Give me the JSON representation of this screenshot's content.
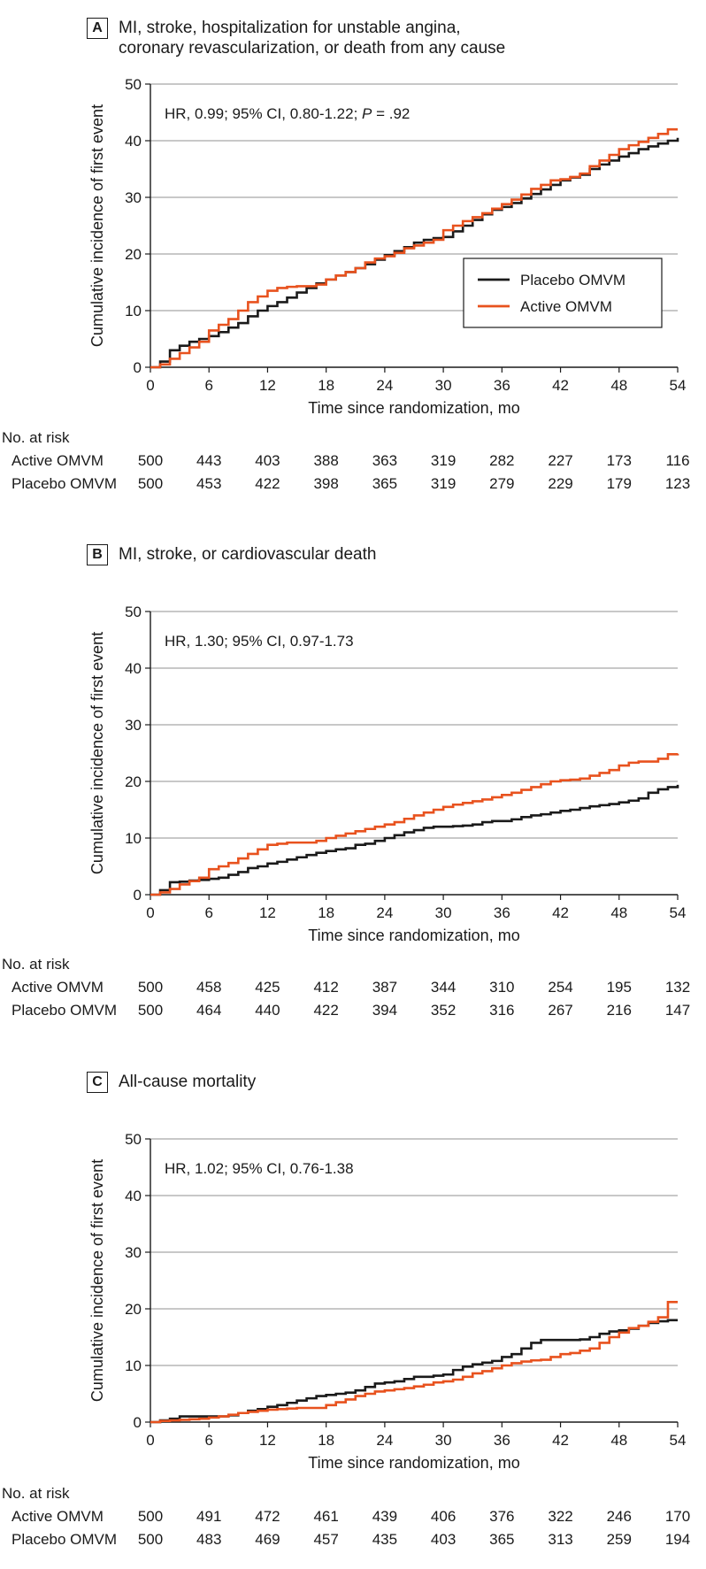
{
  "colors": {
    "placebo": "#1a1a1a",
    "active": "#e8521e",
    "grid": "#a6a6a6"
  },
  "x_axis_label": "Time since randomization, mo",
  "y_axis_label": "Cumulative incidence of first event",
  "legend": {
    "placebo": "Placebo OMVM",
    "active": "Active OMVM"
  },
  "risk_table_title": "No. at risk",
  "chart_data": [
    {
      "type": "line",
      "step": true,
      "panel": "A",
      "title": "MI, stroke, hospitalization for unstable angina,\ncoronary revascularization, or death from any cause",
      "annotation_parts": [
        "HR, 0.99; 95% CI, 0.80-1.22; ",
        "P",
        " = .92"
      ],
      "xlabel": "Time since randomization, mo",
      "ylabel": "Cumulative incidence of first event",
      "xlim": [
        0,
        54
      ],
      "ylim": [
        0,
        50
      ],
      "xticks": [
        0,
        6,
        12,
        18,
        24,
        30,
        36,
        42,
        48,
        54
      ],
      "yticks": [
        0,
        10,
        20,
        30,
        40,
        50
      ],
      "legend_position": "right, middle",
      "series": [
        {
          "name": "Placebo OMVM",
          "color": "#1a1a1a",
          "x": [
            0,
            1,
            2,
            3,
            4,
            5,
            6,
            7,
            8,
            9,
            10,
            11,
            12,
            13,
            14,
            15,
            16,
            17,
            18,
            19,
            20,
            21,
            22,
            23,
            24,
            25,
            26,
            27,
            28,
            29,
            30,
            31,
            32,
            33,
            34,
            35,
            36,
            37,
            38,
            39,
            40,
            41,
            42,
            43,
            44,
            45,
            46,
            47,
            48,
            49,
            50,
            51,
            52,
            53,
            54
          ],
          "y": [
            0,
            1.0,
            3.0,
            3.8,
            4.5,
            5.0,
            5.5,
            6.2,
            7.0,
            7.8,
            9.0,
            10.0,
            10.8,
            11.5,
            12.3,
            13.2,
            14.0,
            14.8,
            15.5,
            16.2,
            16.8,
            17.5,
            18.2,
            19.0,
            19.8,
            20.5,
            21.2,
            22.0,
            22.5,
            22.8,
            23.0,
            24.0,
            25.0,
            26.0,
            27.0,
            27.8,
            28.3,
            29.0,
            29.8,
            30.6,
            31.4,
            32.2,
            33.0,
            33.5,
            34.0,
            35.0,
            35.8,
            36.5,
            37.2,
            37.8,
            38.5,
            39.0,
            39.5,
            40.0,
            40.5
          ]
        },
        {
          "name": "Active OMVM",
          "color": "#e8521e",
          "x": [
            0,
            1,
            2,
            3,
            4,
            5,
            6,
            7,
            8,
            9,
            10,
            11,
            12,
            13,
            14,
            15,
            16,
            17,
            18,
            19,
            20,
            21,
            22,
            23,
            24,
            25,
            26,
            27,
            28,
            29,
            30,
            31,
            32,
            33,
            34,
            35,
            36,
            37,
            38,
            39,
            40,
            41,
            42,
            43,
            44,
            45,
            46,
            47,
            48,
            49,
            50,
            51,
            52,
            53,
            54
          ],
          "y": [
            0,
            0.5,
            1.5,
            2.5,
            3.5,
            4.5,
            6.5,
            7.5,
            8.5,
            10.0,
            11.5,
            12.5,
            13.5,
            14.0,
            14.2,
            14.3,
            14.3,
            14.6,
            15.5,
            16.2,
            16.8,
            17.5,
            18.5,
            19.2,
            19.6,
            20.2,
            21.0,
            21.5,
            22.0,
            22.5,
            24.2,
            25.0,
            25.8,
            26.5,
            27.2,
            28.0,
            28.8,
            29.6,
            30.5,
            31.5,
            32.2,
            33.0,
            33.2,
            33.6,
            34.2,
            35.5,
            36.5,
            37.5,
            38.5,
            39.2,
            39.8,
            40.5,
            41.2,
            42.0,
            42.0
          ]
        }
      ],
      "risk_table": {
        "times": [
          0,
          6,
          12,
          18,
          24,
          30,
          36,
          42,
          48,
          54
        ],
        "rows": [
          {
            "label": "Active OMVM",
            "values": [
              500,
              443,
              403,
              388,
              363,
              319,
              282,
              227,
              173,
              116
            ]
          },
          {
            "label": "Placebo OMVM",
            "values": [
              500,
              453,
              422,
              398,
              365,
              319,
              279,
              229,
              179,
              123
            ]
          }
        ]
      }
    },
    {
      "type": "line",
      "step": true,
      "panel": "B",
      "title": "MI, stroke, or cardiovascular death",
      "annotation_parts": [
        "HR, 1.30; 95% CI, 0.97-1.73",
        "",
        ""
      ],
      "xlabel": "Time since randomization, mo",
      "ylabel": "Cumulative incidence of first event",
      "xlim": [
        0,
        54
      ],
      "ylim": [
        0,
        50
      ],
      "xticks": [
        0,
        6,
        12,
        18,
        24,
        30,
        36,
        42,
        48,
        54
      ],
      "yticks": [
        0,
        10,
        20,
        30,
        40,
        50
      ],
      "legend_position": "none",
      "series": [
        {
          "name": "Placebo OMVM",
          "color": "#1a1a1a",
          "x": [
            0,
            1,
            2,
            3,
            4,
            5,
            6,
            7,
            8,
            9,
            10,
            11,
            12,
            13,
            14,
            15,
            16,
            17,
            18,
            19,
            20,
            21,
            22,
            23,
            24,
            25,
            26,
            27,
            28,
            29,
            30,
            31,
            32,
            33,
            34,
            35,
            36,
            37,
            38,
            39,
            40,
            41,
            42,
            43,
            44,
            45,
            46,
            47,
            48,
            49,
            50,
            51,
            52,
            53,
            54
          ],
          "y": [
            0,
            0.8,
            2.2,
            2.3,
            2.5,
            2.6,
            2.8,
            3.0,
            3.5,
            4.0,
            4.7,
            5.0,
            5.5,
            5.8,
            6.2,
            6.6,
            7.0,
            7.4,
            7.7,
            8.0,
            8.2,
            8.8,
            9.0,
            9.5,
            10.0,
            10.5,
            11.0,
            11.4,
            11.8,
            12.0,
            12.0,
            12.1,
            12.2,
            12.4,
            12.8,
            13.0,
            13.0,
            13.3,
            13.7,
            14.0,
            14.2,
            14.5,
            14.8,
            15.0,
            15.3,
            15.6,
            15.8,
            16.0,
            16.3,
            16.6,
            17.0,
            18.0,
            18.6,
            19.0,
            19.4
          ]
        },
        {
          "name": "Active OMVM",
          "color": "#e8521e",
          "x": [
            0,
            1,
            2,
            3,
            4,
            5,
            6,
            7,
            8,
            9,
            10,
            11,
            12,
            13,
            14,
            15,
            16,
            17,
            18,
            19,
            20,
            21,
            22,
            23,
            24,
            25,
            26,
            27,
            28,
            29,
            30,
            31,
            32,
            33,
            34,
            35,
            36,
            37,
            38,
            39,
            40,
            41,
            42,
            43,
            44,
            45,
            46,
            47,
            48,
            49,
            50,
            51,
            52,
            53,
            54
          ],
          "y": [
            0,
            0.4,
            1.0,
            1.8,
            2.4,
            3.0,
            4.5,
            5.0,
            5.6,
            6.4,
            7.2,
            8.0,
            8.8,
            9.0,
            9.2,
            9.2,
            9.2,
            9.5,
            10.0,
            10.4,
            10.8,
            11.2,
            11.6,
            12.0,
            12.4,
            12.8,
            13.4,
            14.0,
            14.5,
            15.0,
            15.5,
            15.9,
            16.2,
            16.5,
            16.8,
            17.2,
            17.6,
            18.0,
            18.5,
            19.0,
            19.5,
            20.0,
            20.2,
            20.3,
            20.5,
            21.0,
            21.5,
            22.0,
            22.8,
            23.3,
            23.5,
            23.5,
            24.0,
            24.8,
            24.9
          ]
        }
      ],
      "risk_table": {
        "times": [
          0,
          6,
          12,
          18,
          24,
          30,
          36,
          42,
          48,
          54
        ],
        "rows": [
          {
            "label": "Active OMVM",
            "values": [
              500,
              458,
              425,
              412,
              387,
              344,
              310,
              254,
              195,
              132
            ]
          },
          {
            "label": "Placebo OMVM",
            "values": [
              500,
              464,
              440,
              422,
              394,
              352,
              316,
              267,
              216,
              147
            ]
          }
        ]
      }
    },
    {
      "type": "line",
      "step": true,
      "panel": "C",
      "title": "All-cause mortality",
      "annotation_parts": [
        "HR, 1.02; 95% CI, 0.76-1.38",
        "",
        ""
      ],
      "xlabel": "Time since randomization, mo",
      "ylabel": "Cumulative incidence of first event",
      "xlim": [
        0,
        54
      ],
      "ylim": [
        0,
        50
      ],
      "xticks": [
        0,
        6,
        12,
        18,
        24,
        30,
        36,
        42,
        48,
        54
      ],
      "yticks": [
        0,
        10,
        20,
        30,
        40,
        50
      ],
      "legend_position": "none",
      "series": [
        {
          "name": "Placebo OMVM",
          "color": "#1a1a1a",
          "x": [
            0,
            1,
            2,
            3,
            4,
            5,
            6,
            7,
            8,
            9,
            10,
            11,
            12,
            13,
            14,
            15,
            16,
            17,
            18,
            19,
            20,
            21,
            22,
            23,
            24,
            25,
            26,
            27,
            28,
            29,
            30,
            31,
            32,
            33,
            34,
            35,
            36,
            37,
            38,
            39,
            40,
            41,
            42,
            43,
            44,
            45,
            46,
            47,
            48,
            49,
            50,
            51,
            52,
            53,
            54
          ],
          "y": [
            0,
            0.3,
            0.6,
            1.0,
            1.0,
            1.0,
            1.0,
            1.0,
            1.2,
            1.6,
            2.0,
            2.3,
            2.7,
            3.0,
            3.4,
            3.8,
            4.2,
            4.6,
            4.8,
            5.0,
            5.2,
            5.6,
            6.2,
            6.8,
            7.0,
            7.2,
            7.6,
            8.0,
            8.0,
            8.2,
            8.4,
            9.2,
            9.8,
            10.2,
            10.5,
            10.8,
            11.5,
            12.0,
            13.0,
            14.0,
            14.5,
            14.5,
            14.5,
            14.5,
            14.6,
            15.0,
            15.6,
            16.0,
            16.2,
            16.5,
            17.0,
            17.5,
            17.8,
            18.0,
            18.0
          ]
        },
        {
          "name": "Active OMVM",
          "color": "#e8521e",
          "x": [
            0,
            1,
            2,
            3,
            4,
            5,
            6,
            7,
            8,
            9,
            10,
            11,
            12,
            13,
            14,
            15,
            16,
            17,
            18,
            19,
            20,
            21,
            22,
            23,
            24,
            25,
            26,
            27,
            28,
            29,
            30,
            31,
            32,
            33,
            34,
            35,
            36,
            37,
            38,
            39,
            40,
            41,
            42,
            43,
            44,
            45,
            46,
            47,
            48,
            49,
            50,
            51,
            52,
            53,
            54
          ],
          "y": [
            0,
            0.2,
            0.3,
            0.4,
            0.5,
            0.6,
            0.8,
            1.0,
            1.3,
            1.6,
            1.8,
            2.0,
            2.2,
            2.3,
            2.4,
            2.5,
            2.5,
            2.5,
            3.0,
            3.5,
            4.0,
            4.6,
            5.0,
            5.4,
            5.6,
            5.8,
            6.0,
            6.3,
            6.6,
            7.0,
            7.2,
            7.5,
            8.0,
            8.6,
            9.0,
            9.5,
            10.0,
            10.4,
            10.7,
            10.9,
            11.0,
            11.5,
            12.0,
            12.2,
            12.6,
            13.0,
            14.0,
            15.0,
            15.8,
            16.6,
            17.0,
            17.7,
            18.5,
            21.2,
            21.2
          ]
        }
      ],
      "risk_table": {
        "times": [
          0,
          6,
          12,
          18,
          24,
          30,
          36,
          42,
          48,
          54
        ],
        "rows": [
          {
            "label": "Active OMVM",
            "values": [
              500,
              491,
              472,
              461,
              439,
              406,
              376,
              322,
              246,
              170
            ]
          },
          {
            "label": "Placebo OMVM",
            "values": [
              500,
              483,
              469,
              457,
              435,
              403,
              365,
              313,
              259,
              194
            ]
          }
        ]
      }
    }
  ]
}
